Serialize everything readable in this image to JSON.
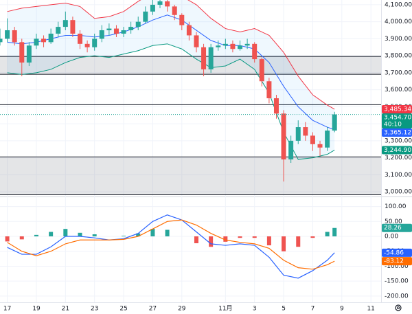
{
  "chart_data": {
    "type": "candlestick",
    "x": [
      16.5,
      17,
      17.5,
      18,
      18.5,
      19,
      19.5,
      20,
      20.5,
      21,
      21.5,
      22,
      22.5,
      23,
      23.5,
      24,
      24.5,
      25,
      25.5,
      26,
      26.5,
      27,
      27.5,
      28,
      28.5,
      29,
      29.5,
      30,
      30.5,
      31,
      31.5,
      32,
      32.5,
      33,
      33.5,
      34,
      34.5,
      35,
      35.5,
      36,
      36.5,
      37,
      37.5,
      38,
      38.5,
      39,
      39.5
    ],
    "open": [
      3880,
      3900,
      3950,
      3880,
      3760,
      3860,
      3900,
      3880,
      3930,
      3970,
      4010,
      3930,
      3870,
      3850,
      3900,
      3950,
      3960,
      3930,
      3950,
      3970,
      4000,
      4060,
      4100,
      4120,
      4090,
      4040,
      3980,
      3920,
      3850,
      3720,
      3850,
      3860,
      3870,
      3840,
      3860,
      3870,
      3780,
      3650,
      3550,
      3460,
      3190,
      3300,
      3380,
      3330,
      3280,
      3260,
      3360
    ],
    "high": [
      3960,
      4020,
      3970,
      3900,
      3880,
      3930,
      3920,
      3960,
      4000,
      4060,
      4030,
      3950,
      3890,
      3930,
      3980,
      3990,
      3980,
      3970,
      4000,
      4030,
      4090,
      4140,
      4160,
      4140,
      4100,
      4050,
      4000,
      3940,
      3870,
      3870,
      3890,
      3900,
      3890,
      3890,
      3900,
      3880,
      3790,
      3670,
      3570,
      3480,
      3330,
      3420,
      3410,
      3350,
      3300,
      3380,
      3470
    ],
    "low": [
      3860,
      3880,
      3860,
      3680,
      3740,
      3840,
      3850,
      3870,
      3910,
      3950,
      3910,
      3840,
      3820,
      3830,
      3880,
      3920,
      3910,
      3910,
      3930,
      3950,
      3990,
      4040,
      4080,
      4060,
      4010,
      3950,
      3890,
      3820,
      3680,
      3700,
      3830,
      3840,
      3820,
      3830,
      3840,
      3760,
      3620,
      3520,
      3430,
      3060,
      3170,
      3280,
      3300,
      3240,
      3210,
      3240,
      3350
    ],
    "close": [
      3900,
      3950,
      3880,
      3760,
      3860,
      3900,
      3880,
      3930,
      3970,
      4010,
      3930,
      3870,
      3850,
      3900,
      3950,
      3960,
      3930,
      3950,
      3970,
      4000,
      4060,
      4100,
      4120,
      4090,
      4040,
      3980,
      3920,
      3850,
      3720,
      3850,
      3860,
      3870,
      3840,
      3860,
      3870,
      3780,
      3650,
      3550,
      3460,
      3190,
      3300,
      3380,
      3330,
      3280,
      3260,
      3360,
      3454.7
    ],
    "up_color": "#26a69a",
    "down_color": "#ef5350",
    "overlay_x": [
      17,
      18,
      19,
      20,
      21,
      22,
      23,
      24,
      25,
      26,
      27,
      28,
      29,
      30,
      31,
      32,
      33,
      34,
      35,
      36,
      37,
      38,
      39,
      39.5
    ],
    "overlays": [
      {
        "color": "#f23645",
        "values": [
          4060,
          4080,
          4090,
          4100,
          4110,
          4090,
          4020,
          4030,
          4060,
          4120,
          4170,
          4180,
          4150,
          4100,
          4020,
          3960,
          3940,
          3960,
          3920,
          3820,
          3680,
          3570,
          3510,
          3485.34
        ]
      },
      {
        "color": "#2962ff",
        "values": [
          3880,
          3870,
          3880,
          3900,
          3920,
          3920,
          3910,
          3920,
          3940,
          3970,
          4010,
          4040,
          4010,
          3950,
          3890,
          3860,
          3860,
          3840,
          3760,
          3620,
          3500,
          3420,
          3380,
          3365.12
        ]
      },
      {
        "color": "#089981",
        "values": [
          3700,
          3690,
          3700,
          3720,
          3760,
          3790,
          3800,
          3790,
          3810,
          3830,
          3860,
          3870,
          3840,
          3780,
          3730,
          3740,
          3780,
          3720,
          3580,
          3350,
          3190,
          3200,
          3220,
          3244.9
        ]
      }
    ],
    "band_fill": "rgba(33,150,243,0.07)",
    "zones": [
      [
        3691,
        3796
      ],
      [
        2982,
        3205
      ]
    ],
    "hlines": [
      3512
    ],
    "last_labels": [
      {
        "value": 3485.34,
        "label": "3,485.34",
        "color": "#f23645"
      },
      {
        "value": 3454.7,
        "label": "3,454.70",
        "color": "#089981",
        "countdown": "40:10"
      },
      {
        "value": 3365.12,
        "label": "3,365.12",
        "color": "#2962ff"
      },
      {
        "value": 3244.9,
        "label": "3,244.90",
        "color": "#089981"
      }
    ],
    "ylim": [
      2976,
      4128
    ],
    "yticks": [
      {
        "value": 4100,
        "label": "4,100.00"
      },
      {
        "value": 4000,
        "label": "4,000.00"
      },
      {
        "value": 3900,
        "label": "3,900.00"
      },
      {
        "value": 3800,
        "label": "3,800.00"
      },
      {
        "value": 3700,
        "label": "3,700.00"
      },
      {
        "value": 3600,
        "label": "3,600.00"
      },
      {
        "value": 3500,
        "label": "3,500.00"
      },
      {
        "value": 3400,
        "label": "3,400.00"
      },
      {
        "value": 3300,
        "label": "3,300.00"
      },
      {
        "value": 3200,
        "label": "3,200.00"
      },
      {
        "value": 3100,
        "label": "3,100.00"
      },
      {
        "value": 3000,
        "label": "3,000.00"
      }
    ],
    "xlim": [
      16.5,
      42.7
    ],
    "xticks": [
      17,
      19,
      21,
      23,
      25,
      27,
      29,
      {
        "value": 32,
        "label": "11月"
      },
      {
        "value": 34,
        "label": "3"
      },
      {
        "value": 36,
        "label": "5"
      },
      {
        "value": 38,
        "label": "7"
      },
      {
        "value": 40,
        "label": "9"
      },
      {
        "value": 42,
        "label": "11"
      }
    ],
    "grid": true,
    "macd": {
      "type": "macd",
      "x": [
        17,
        18,
        19,
        20,
        21,
        22,
        23,
        24,
        25,
        26,
        27,
        28,
        29,
        30,
        31,
        32,
        33,
        34,
        35,
        36,
        37,
        38,
        39,
        39.5
      ],
      "histogram": [
        -17,
        -10,
        5,
        15,
        25,
        12,
        7,
        0,
        2,
        10,
        25,
        22,
        0,
        -23,
        -35,
        -18,
        -5,
        -5,
        -30,
        -50,
        -35,
        -5,
        15,
        28.26
      ],
      "hist_up_color": "#26a69a",
      "hist_down_color": "#ef5350",
      "series": [
        {
          "color": "#2962ff",
          "values": [
            -37,
            -60,
            -60,
            -35,
            0,
            0,
            -5,
            -12,
            -8,
            10,
            50,
            72,
            55,
            15,
            -25,
            -30,
            -25,
            -30,
            -70,
            -130,
            -140,
            -115,
            -80,
            -54.86
          ]
        },
        {
          "color": "#ff6d00",
          "values": [
            -20,
            -50,
            -65,
            -50,
            -25,
            -12,
            -12,
            -12,
            -10,
            0,
            25,
            50,
            55,
            38,
            10,
            -12,
            -20,
            -25,
            -40,
            -80,
            -105,
            -110,
            -95,
            -83.12
          ]
        }
      ],
      "last_labels": [
        {
          "value": 28.26,
          "label": "28.26",
          "color": "#26a69a"
        },
        {
          "value": -54.86,
          "label": "-54.86",
          "color": "#2962ff"
        },
        {
          "value": -83.12,
          "label": "-83.12",
          "color": "#ff6d00"
        }
      ],
      "ylim": [
        -221,
        129
      ],
      "yticks": [
        {
          "value": 100,
          "label": "100.00"
        },
        {
          "value": 50,
          "label": "50.00"
        },
        {
          "value": 0,
          "label": "0.00"
        },
        {
          "value": -50,
          "label": "-50.00"
        },
        {
          "value": -100,
          "label": "-100.00"
        },
        {
          "value": -150,
          "label": "-150.00"
        },
        {
          "value": -200,
          "label": "-200.00"
        }
      ]
    }
  }
}
